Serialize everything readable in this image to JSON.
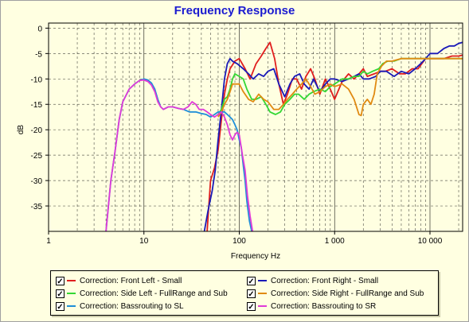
{
  "chart_data": {
    "type": "line",
    "title": "Frequency Response",
    "xlabel": "Frequency Hz",
    "ylabel": "dB",
    "xscale": "log",
    "xlim": [
      1,
      22000
    ],
    "ylim": [
      -40,
      1
    ],
    "x_ticks": [
      {
        "v": 1,
        "label": "1"
      },
      {
        "v": 10,
        "label": "10"
      },
      {
        "v": 100,
        "label": "100"
      },
      {
        "v": 1000,
        "label": "1 000"
      },
      {
        "v": 10000,
        "label": "10 000"
      }
    ],
    "y_ticks": [
      {
        "v": 0,
        "label": "0"
      },
      {
        "v": -5,
        "label": "-5"
      },
      {
        "v": -10,
        "label": "-10"
      },
      {
        "v": -15,
        "label": "-15"
      },
      {
        "v": -20,
        "label": "-20"
      },
      {
        "v": -25,
        "label": "-25"
      },
      {
        "v": -30,
        "label": "-30"
      },
      {
        "v": -35,
        "label": "-35"
      }
    ],
    "grid": true,
    "legend_position": "bottom",
    "series": [
      {
        "name": "Correction: Front Left - Small",
        "color": "#e01e1e",
        "checked": true,
        "points": [
          [
            46,
            -40
          ],
          [
            50,
            -30
          ],
          [
            55,
            -27.5
          ],
          [
            60,
            -24
          ],
          [
            65,
            -18
          ],
          [
            70,
            -13
          ],
          [
            75,
            -10
          ],
          [
            80,
            -8
          ],
          [
            90,
            -6.5
          ],
          [
            100,
            -6
          ],
          [
            115,
            -8
          ],
          [
            130,
            -10
          ],
          [
            150,
            -7
          ],
          [
            170,
            -5.5
          ],
          [
            190,
            -4
          ],
          [
            210,
            -2.8
          ],
          [
            235,
            -6
          ],
          [
            260,
            -11
          ],
          [
            290,
            -15
          ],
          [
            320,
            -13
          ],
          [
            360,
            -10
          ],
          [
            400,
            -10
          ],
          [
            450,
            -12
          ],
          [
            500,
            -9.5
          ],
          [
            560,
            -8
          ],
          [
            620,
            -10
          ],
          [
            700,
            -13
          ],
          [
            800,
            -10
          ],
          [
            900,
            -12
          ],
          [
            1000,
            -14
          ],
          [
            1200,
            -10.5
          ],
          [
            1400,
            -9
          ],
          [
            1600,
            -10
          ],
          [
            1800,
            -9
          ],
          [
            2000,
            -8
          ],
          [
            2200,
            -9.5
          ],
          [
            2600,
            -9
          ],
          [
            3000,
            -8.5
          ],
          [
            3400,
            -8.5
          ],
          [
            4000,
            -8
          ],
          [
            4800,
            -9
          ],
          [
            5500,
            -9
          ],
          [
            6500,
            -8
          ],
          [
            7500,
            -8
          ],
          [
            9000,
            -6
          ],
          [
            11000,
            -6
          ],
          [
            14000,
            -6
          ],
          [
            17000,
            -5.5
          ],
          [
            20000,
            -5.5
          ],
          [
            22000,
            -5.3
          ]
        ]
      },
      {
        "name": "Correction: Front Right - Small",
        "color": "#1a1ab8",
        "checked": true,
        "points": [
          [
            43,
            -40
          ],
          [
            47,
            -36
          ],
          [
            52,
            -32
          ],
          [
            56,
            -28
          ],
          [
            60,
            -22
          ],
          [
            65,
            -16
          ],
          [
            70,
            -10
          ],
          [
            75,
            -7
          ],
          [
            80,
            -6
          ],
          [
            85,
            -6.5
          ],
          [
            95,
            -7
          ],
          [
            110,
            -8
          ],
          [
            125,
            -9
          ],
          [
            140,
            -10
          ],
          [
            160,
            -9
          ],
          [
            180,
            -9.5
          ],
          [
            200,
            -8.5
          ],
          [
            230,
            -8
          ],
          [
            260,
            -11
          ],
          [
            300,
            -13.5
          ],
          [
            340,
            -11
          ],
          [
            380,
            -9.5
          ],
          [
            430,
            -9
          ],
          [
            480,
            -11
          ],
          [
            540,
            -12
          ],
          [
            600,
            -10
          ],
          [
            700,
            -12.5
          ],
          [
            800,
            -11
          ],
          [
            900,
            -10
          ],
          [
            1000,
            -10
          ],
          [
            1200,
            -10.5
          ],
          [
            1400,
            -10
          ],
          [
            1600,
            -9.5
          ],
          [
            1800,
            -9
          ],
          [
            2000,
            -10
          ],
          [
            2300,
            -10
          ],
          [
            2700,
            -9.5
          ],
          [
            3000,
            -8.5
          ],
          [
            3500,
            -8.5
          ],
          [
            4200,
            -9.5
          ],
          [
            5000,
            -8.5
          ],
          [
            6000,
            -9
          ],
          [
            7000,
            -8
          ],
          [
            8000,
            -7
          ],
          [
            9000,
            -6
          ],
          [
            10000,
            -5
          ],
          [
            12000,
            -5
          ],
          [
            14000,
            -4
          ],
          [
            16000,
            -3.5
          ],
          [
            18000,
            -3.5
          ],
          [
            20000,
            -3
          ],
          [
            22000,
            -2.8
          ]
        ]
      },
      {
        "name": "Correction: Side Left - FullRange and Sub",
        "color": "#34d734",
        "checked": true,
        "points": [
          [
            60,
            -17
          ],
          [
            65,
            -16
          ],
          [
            70,
            -14
          ],
          [
            75,
            -13.5
          ],
          [
            80,
            -12
          ],
          [
            85,
            -10
          ],
          [
            90,
            -9
          ],
          [
            100,
            -9.5
          ],
          [
            110,
            -10
          ],
          [
            120,
            -12
          ],
          [
            135,
            -14
          ],
          [
            150,
            -14
          ],
          [
            170,
            -13.5
          ],
          [
            190,
            -15
          ],
          [
            210,
            -16.5
          ],
          [
            240,
            -17
          ],
          [
            270,
            -16.5
          ],
          [
            300,
            -15
          ],
          [
            340,
            -14
          ],
          [
            380,
            -13
          ],
          [
            420,
            -13
          ],
          [
            480,
            -14
          ],
          [
            540,
            -13
          ],
          [
            600,
            -12.5
          ],
          [
            700,
            -12
          ],
          [
            800,
            -12.5
          ],
          [
            900,
            -11.5
          ],
          [
            1000,
            -11
          ],
          [
            1200,
            -10
          ],
          [
            1400,
            -10
          ],
          [
            1600,
            -9.5
          ],
          [
            1800,
            -9.5
          ],
          [
            2000,
            -8.5
          ],
          [
            2200,
            -9
          ],
          [
            2500,
            -8.5
          ],
          [
            2900,
            -8
          ],
          [
            3200,
            -7
          ],
          [
            3600,
            -6.5
          ],
          [
            4200,
            -6.5
          ],
          [
            5000,
            -6
          ],
          [
            7000,
            -6
          ],
          [
            10000,
            -6
          ],
          [
            15000,
            -6
          ],
          [
            22000,
            -6
          ]
        ]
      },
      {
        "name": "Correction: Side Right - FullRange and Sub",
        "color": "#e08a12",
        "checked": true,
        "points": [
          [
            60,
            -17.5
          ],
          [
            65,
            -16.5
          ],
          [
            70,
            -15
          ],
          [
            75,
            -14
          ],
          [
            80,
            -12.5
          ],
          [
            85,
            -11
          ],
          [
            90,
            -11
          ],
          [
            100,
            -11
          ],
          [
            110,
            -12.5
          ],
          [
            125,
            -14
          ],
          [
            140,
            -14.5
          ],
          [
            160,
            -13
          ],
          [
            180,
            -14
          ],
          [
            200,
            -14.5
          ],
          [
            230,
            -16
          ],
          [
            260,
            -16
          ],
          [
            290,
            -15
          ],
          [
            320,
            -14
          ],
          [
            360,
            -13
          ],
          [
            400,
            -12
          ],
          [
            450,
            -11
          ],
          [
            500,
            -10
          ],
          [
            560,
            -11.5
          ],
          [
            620,
            -13
          ],
          [
            700,
            -12.5
          ],
          [
            800,
            -11.5
          ],
          [
            900,
            -11
          ],
          [
            1000,
            -11.5
          ],
          [
            1200,
            -11
          ],
          [
            1400,
            -12
          ],
          [
            1600,
            -14
          ],
          [
            1800,
            -17
          ],
          [
            1900,
            -17.2
          ],
          [
            2000,
            -15
          ],
          [
            2200,
            -14
          ],
          [
            2400,
            -15
          ],
          [
            2600,
            -13
          ],
          [
            2800,
            -9
          ],
          [
            3100,
            -7.5
          ],
          [
            3500,
            -6.5
          ],
          [
            4000,
            -6.5
          ],
          [
            5000,
            -6
          ],
          [
            6000,
            -6
          ],
          [
            8000,
            -6
          ],
          [
            10000,
            -6
          ],
          [
            14000,
            -6
          ],
          [
            22000,
            -6
          ]
        ]
      },
      {
        "name": "Correction: Bassrouting to SL",
        "color": "#1e8ed8",
        "checked": true,
        "points": [
          [
            4,
            -40
          ],
          [
            4.5,
            -30
          ],
          [
            5,
            -24
          ],
          [
            5.5,
            -18
          ],
          [
            6,
            -14.5
          ],
          [
            7,
            -12
          ],
          [
            8,
            -11
          ],
          [
            9,
            -10.3
          ],
          [
            10,
            -10
          ],
          [
            11,
            -10.2
          ],
          [
            12,
            -10.8
          ],
          [
            13,
            -12
          ],
          [
            14,
            -14
          ],
          [
            15,
            -15.5
          ],
          [
            16,
            -16
          ],
          [
            18,
            -15.5
          ],
          [
            20,
            -15.5
          ],
          [
            23,
            -15.8
          ],
          [
            26,
            -16
          ],
          [
            30,
            -16.5
          ],
          [
            35,
            -16.5
          ],
          [
            40,
            -16.8
          ],
          [
            45,
            -17
          ],
          [
            50,
            -17.5
          ],
          [
            55,
            -17
          ],
          [
            60,
            -16.5
          ],
          [
            65,
            -16.5
          ],
          [
            70,
            -16.5
          ],
          [
            75,
            -17
          ],
          [
            80,
            -17.5
          ],
          [
            85,
            -18
          ],
          [
            90,
            -19
          ],
          [
            95,
            -20
          ],
          [
            100,
            -22
          ],
          [
            105,
            -23.5
          ],
          [
            110,
            -27
          ],
          [
            115,
            -30
          ],
          [
            120,
            -34
          ],
          [
            128,
            -38
          ],
          [
            135,
            -40
          ]
        ]
      },
      {
        "name": "Correction: Bassrouting to SR",
        "color": "#e03ad8",
        "checked": true,
        "points": [
          [
            4,
            -40
          ],
          [
            4.5,
            -30
          ],
          [
            5,
            -24
          ],
          [
            5.5,
            -18
          ],
          [
            6,
            -14.5
          ],
          [
            7,
            -12
          ],
          [
            8,
            -11
          ],
          [
            9,
            -10.3
          ],
          [
            10,
            -10.2
          ],
          [
            11,
            -10.5
          ],
          [
            12,
            -11.2
          ],
          [
            13,
            -12.5
          ],
          [
            14,
            -14.5
          ],
          [
            15,
            -15.5
          ],
          [
            16,
            -16
          ],
          [
            18,
            -15.5
          ],
          [
            20,
            -15.5
          ],
          [
            23,
            -15.8
          ],
          [
            26,
            -16
          ],
          [
            29,
            -15.5
          ],
          [
            32,
            -14.5
          ],
          [
            35,
            -15
          ],
          [
            38,
            -16
          ],
          [
            42,
            -16
          ],
          [
            46,
            -16.5
          ],
          [
            50,
            -17
          ],
          [
            55,
            -17.5
          ],
          [
            60,
            -17
          ],
          [
            65,
            -16.5
          ],
          [
            70,
            -17.5
          ],
          [
            75,
            -19
          ],
          [
            80,
            -21
          ],
          [
            85,
            -22
          ],
          [
            90,
            -21
          ],
          [
            95,
            -20.5
          ],
          [
            100,
            -21
          ],
          [
            108,
            -25
          ],
          [
            115,
            -28
          ],
          [
            122,
            -33
          ],
          [
            130,
            -37
          ],
          [
            138,
            -40
          ]
        ]
      }
    ]
  },
  "legend": {
    "check_mark": "✓"
  }
}
